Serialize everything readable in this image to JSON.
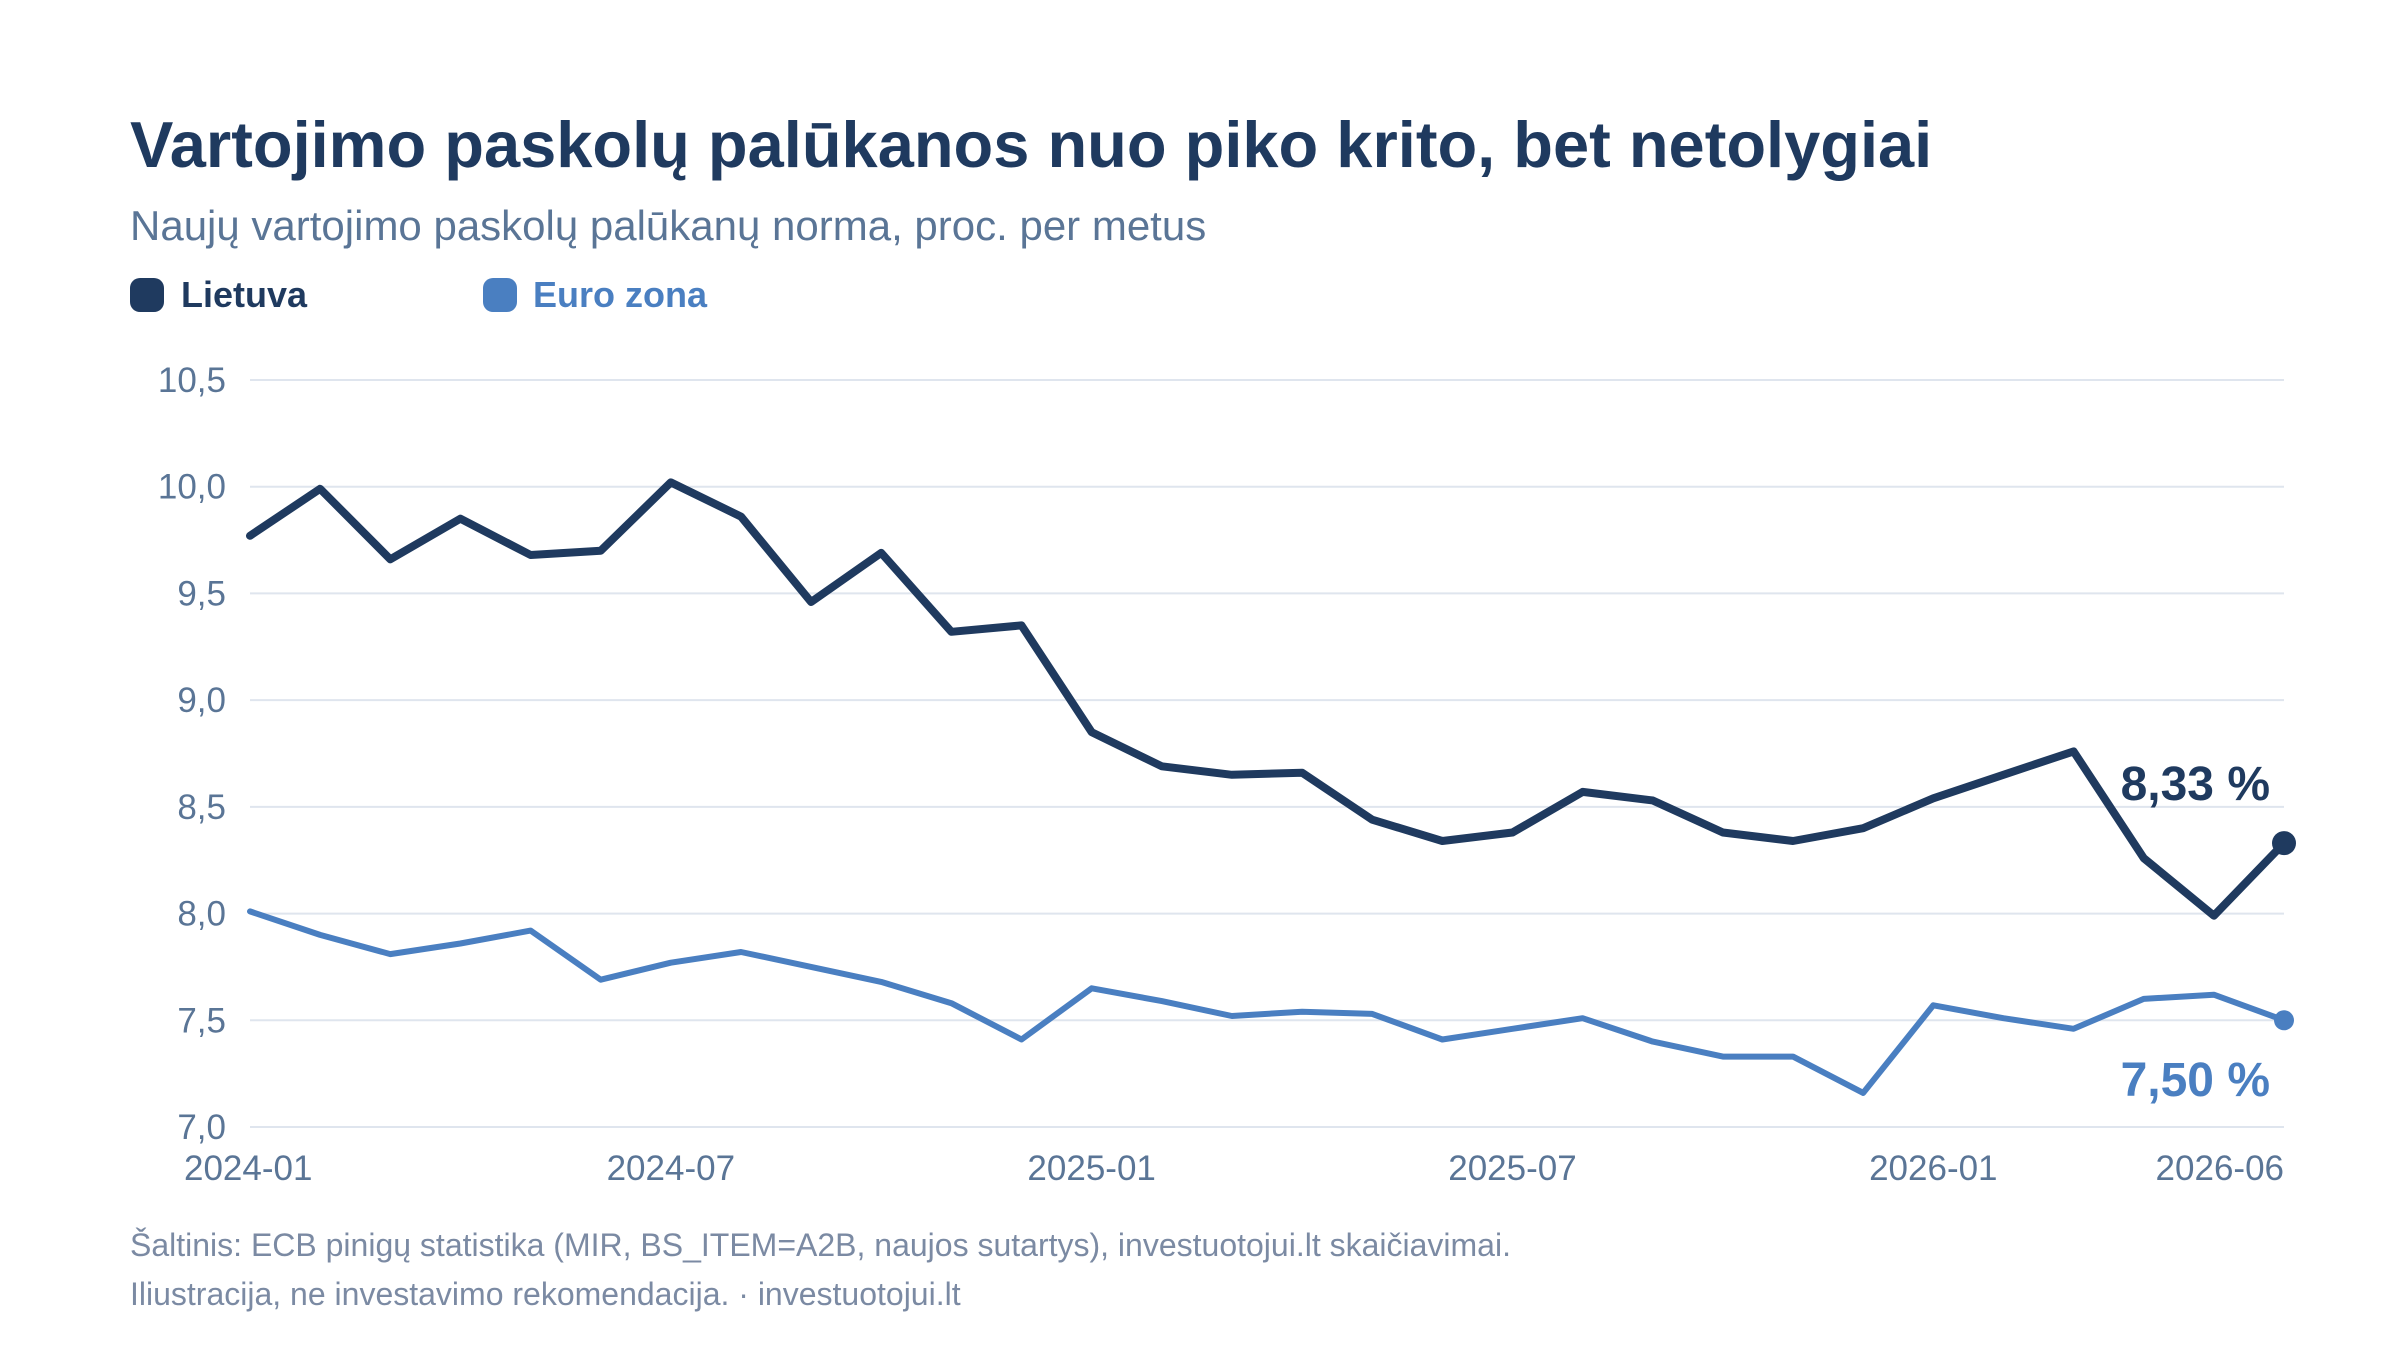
{
  "title": "Vartojimo paskolų palūkanos nuo piko krito, bet netolygiai",
  "subtitle": "Naujų vartojimo paskolų palūkanų norma, proc. per metus",
  "colors": {
    "title": "#1f3a5f",
    "subtitle": "#5a7596",
    "axis_text": "#5a7596",
    "grid": "#dfe5ee",
    "source": "#7b8aa3",
    "lietuva": "#1f3a5f",
    "euro_zona": "#4a7fc1"
  },
  "legend": [
    {
      "name": "Lietuva",
      "color": "#1f3a5f"
    },
    {
      "name": "Euro zona",
      "color": "#4a7fc1"
    }
  ],
  "end_labels": {
    "lietuva": "8,33 %",
    "euro_zona": "7,50 %"
  },
  "source_lines": [
    "Šaltinis: ECB pinigų statistika (MIR, BS_ITEM=A2B, naujos sutartys), investuotojui.lt skaičiavimai.",
    "Iliustracija, ne investavimo rekomendacija. · investuotojui.lt"
  ],
  "chart_data": {
    "type": "line",
    "x": [
      "2024-01",
      "2024-02",
      "2024-03",
      "2024-04",
      "2024-05",
      "2024-06",
      "2024-07",
      "2024-08",
      "2024-09",
      "2024-10",
      "2024-11",
      "2024-12",
      "2025-01",
      "2025-02",
      "2025-03",
      "2025-04",
      "2025-05",
      "2025-06",
      "2025-07",
      "2025-08",
      "2025-09",
      "2025-10",
      "2025-11",
      "2025-12",
      "2026-01",
      "2026-02",
      "2026-03",
      "2026-04",
      "2026-05",
      "2026-06"
    ],
    "x_ticks": [
      "2024-01",
      "2024-07",
      "2025-01",
      "2025-07",
      "2026-01",
      "2026-06"
    ],
    "y_ticks": [
      7.0,
      7.5,
      8.0,
      8.5,
      9.0,
      9.5,
      10.0,
      10.5
    ],
    "y_tick_labels": [
      "7,0",
      "7,5",
      "8,0",
      "8,5",
      "9,0",
      "9,5",
      "10,0",
      "10,5"
    ],
    "ylim": [
      7.0,
      10.5
    ],
    "grid": true,
    "legend_position": "top-left",
    "series": [
      {
        "name": "Lietuva",
        "color": "#1f3a5f",
        "values": [
          9.77,
          9.99,
          9.66,
          9.85,
          9.68,
          9.7,
          10.02,
          9.86,
          9.46,
          9.69,
          9.32,
          9.35,
          8.85,
          8.69,
          8.65,
          8.66,
          8.44,
          8.34,
          8.38,
          8.57,
          8.53,
          8.38,
          8.34,
          8.4,
          8.54,
          8.65,
          8.76,
          8.26,
          7.99,
          8.33
        ]
      },
      {
        "name": "Euro zona",
        "color": "#4a7fc1",
        "values": [
          8.01,
          7.9,
          7.81,
          7.86,
          7.92,
          7.69,
          7.77,
          7.82,
          7.75,
          7.68,
          7.58,
          7.41,
          7.65,
          7.59,
          7.52,
          7.54,
          7.53,
          7.41,
          7.46,
          7.51,
          7.4,
          7.33,
          7.33,
          7.16,
          7.57,
          7.51,
          7.46,
          7.6,
          7.62,
          7.5
        ]
      }
    ]
  }
}
